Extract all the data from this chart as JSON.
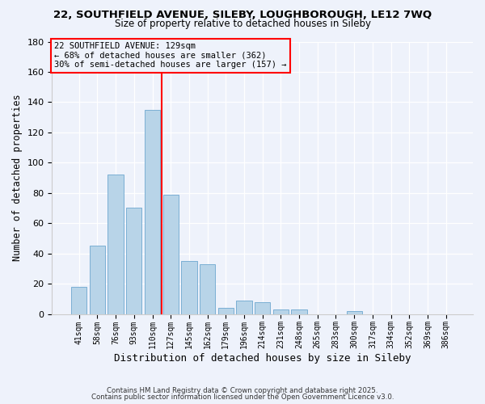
{
  "title1": "22, SOUTHFIELD AVENUE, SILEBY, LOUGHBOROUGH, LE12 7WQ",
  "title2": "Size of property relative to detached houses in Sileby",
  "xlabel": "Distribution of detached houses by size in Sileby",
  "ylabel": "Number of detached properties",
  "bar_heights": [
    18,
    45,
    92,
    70,
    135,
    79,
    35,
    33,
    4,
    9,
    8,
    3,
    3,
    0,
    0,
    2,
    0,
    0,
    0,
    0,
    0
  ],
  "bin_labels": [
    "41sqm",
    "58sqm",
    "76sqm",
    "93sqm",
    "110sqm",
    "127sqm",
    "145sqm",
    "162sqm",
    "179sqm",
    "196sqm",
    "214sqm",
    "231sqm",
    "248sqm",
    "265sqm",
    "283sqm",
    "300sqm",
    "317sqm",
    "334sqm",
    "352sqm",
    "369sqm",
    "386sqm"
  ],
  "bar_color": "#b8d4e8",
  "bar_edge_color": "#7bafd4",
  "background_color": "#eef2fb",
  "red_line_index": 5,
  "annotation_line1": "22 SOUTHFIELD AVENUE: 129sqm",
  "annotation_line2": "← 68% of detached houses are smaller (362)",
  "annotation_line3": "30% of semi-detached houses are larger (157) →",
  "ylim": [
    0,
    180
  ],
  "yticks": [
    0,
    20,
    40,
    60,
    80,
    100,
    120,
    140,
    160,
    180
  ],
  "footer1": "Contains HM Land Registry data © Crown copyright and database right 2025.",
  "footer2": "Contains public sector information licensed under the Open Government Licence v3.0."
}
